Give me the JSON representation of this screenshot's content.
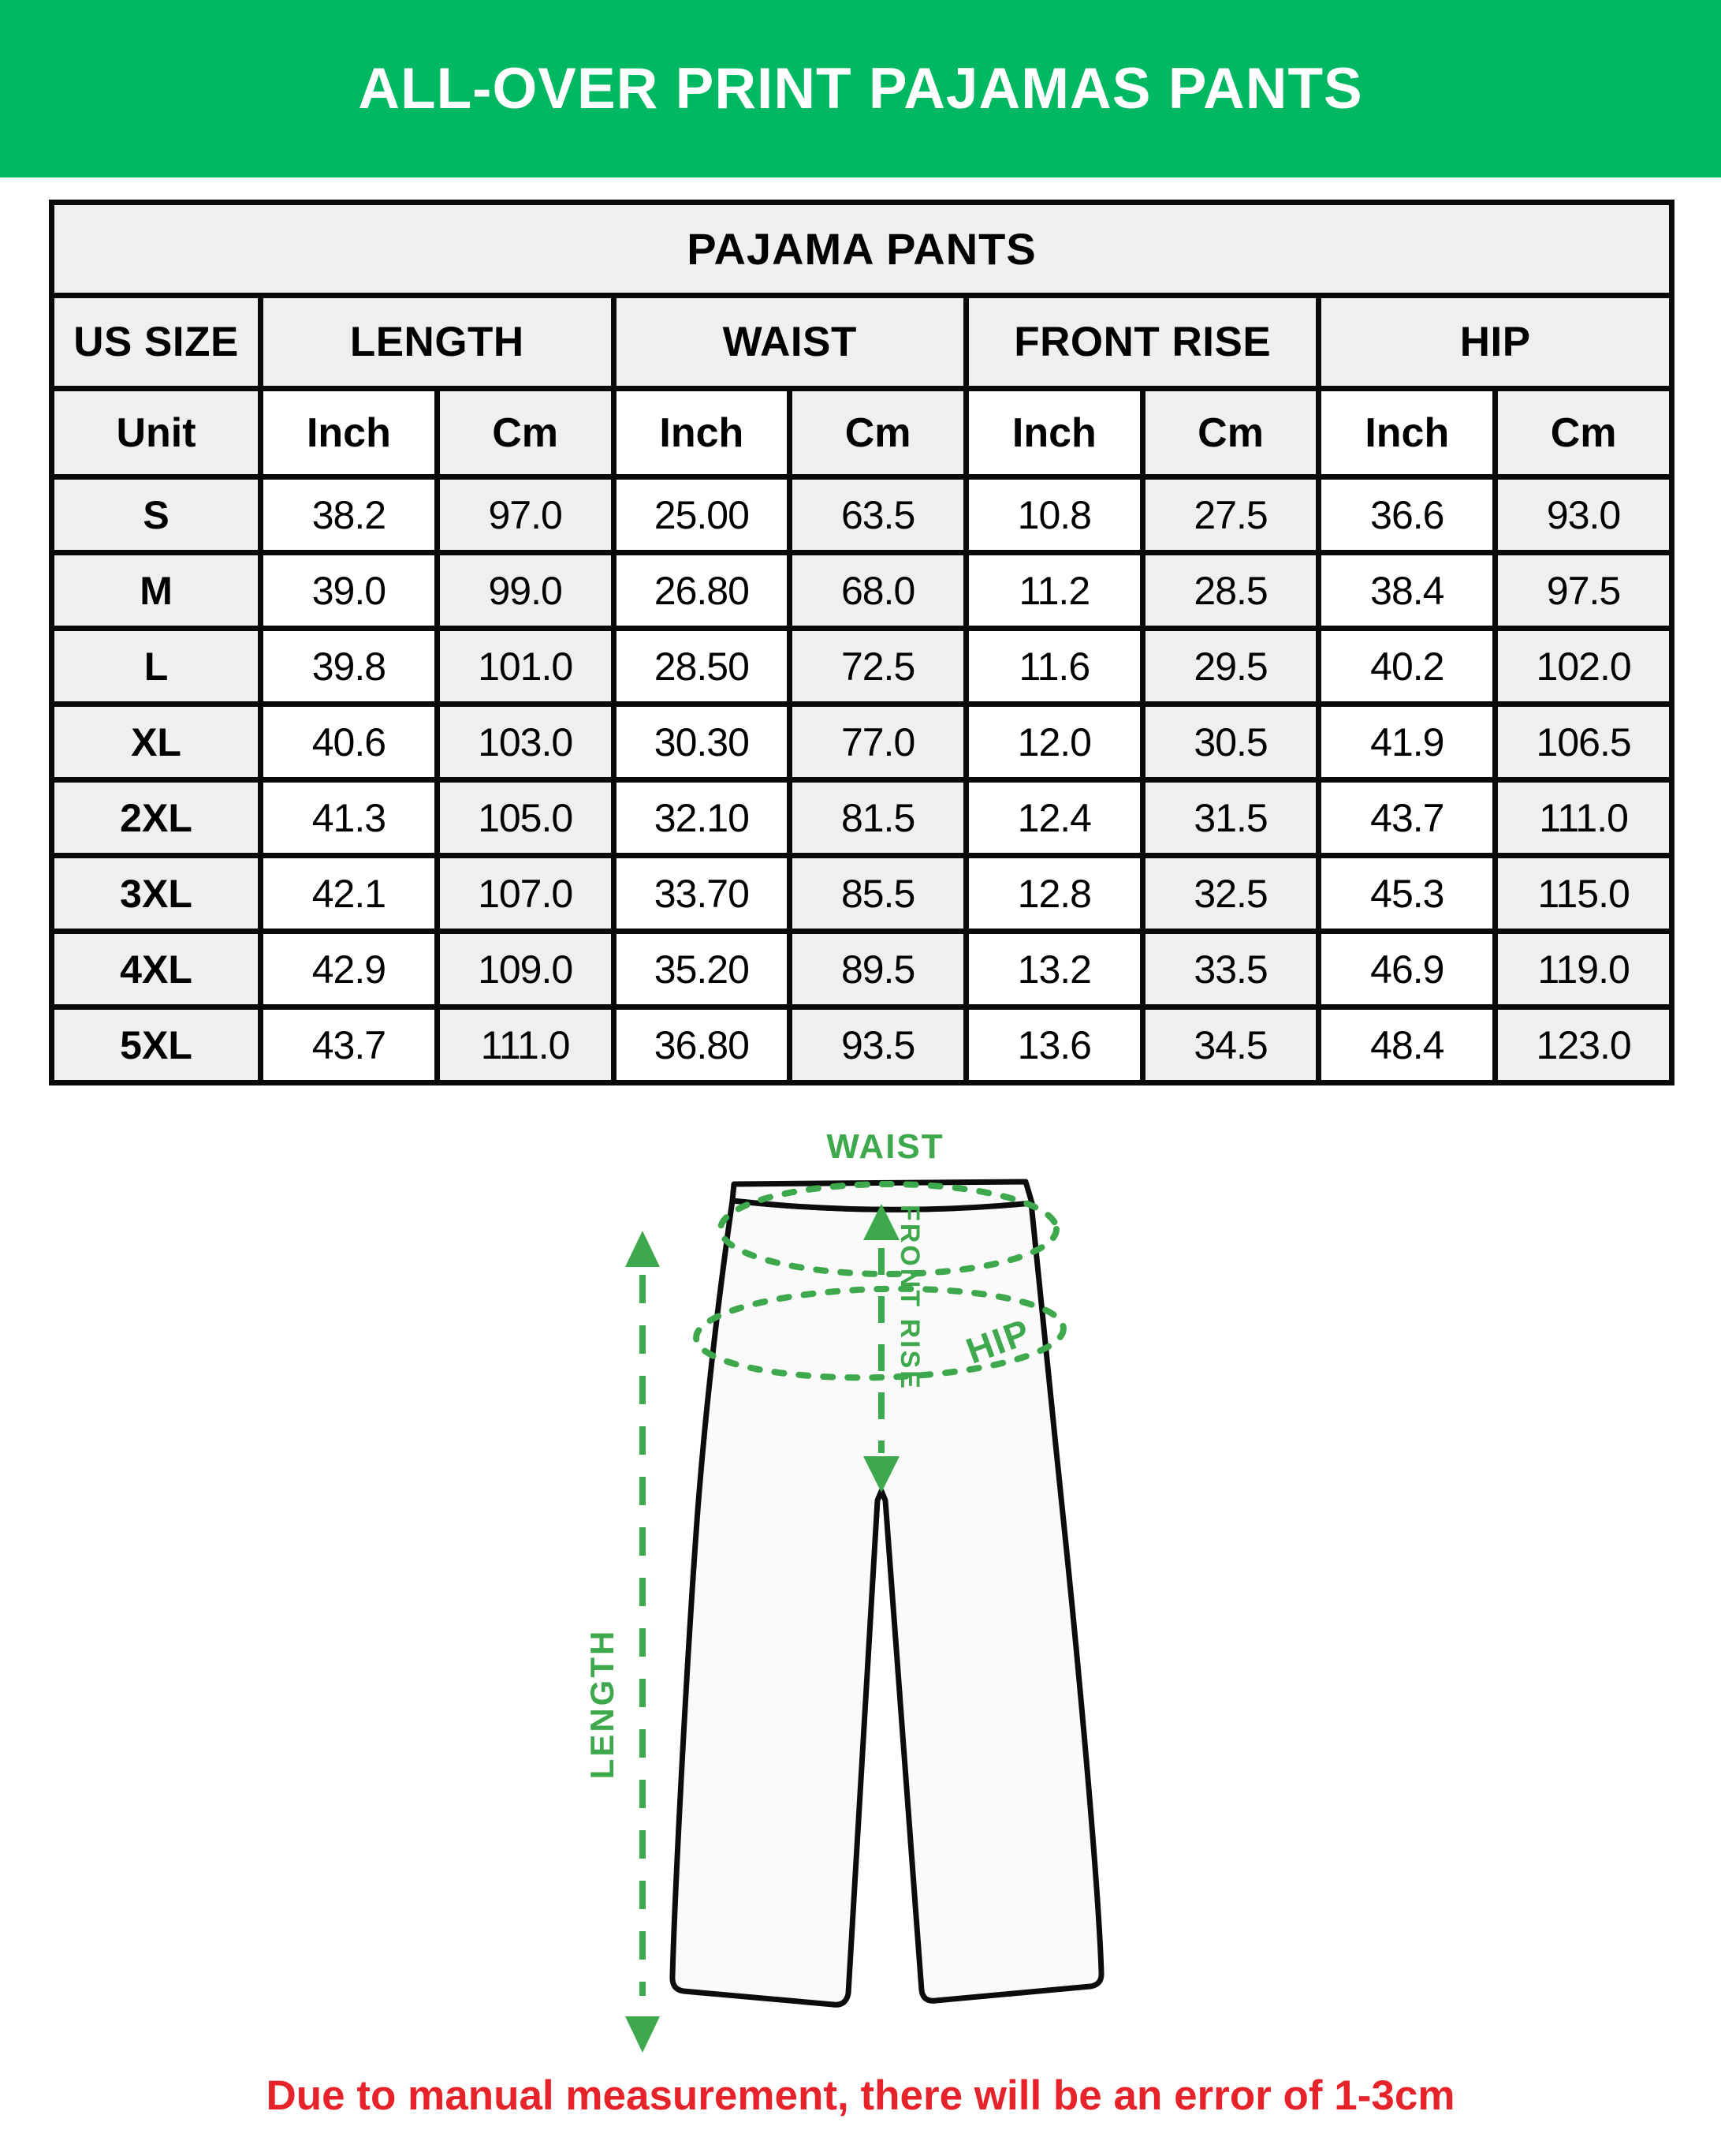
{
  "header": {
    "title": "ALL-OVER PRINT PAJAMAS PANTS"
  },
  "size_chart": {
    "title": "PAJAMA PANTS",
    "columns": [
      "US SIZE",
      "LENGTH",
      "WAIST",
      "FRONT RISE",
      "HIP"
    ],
    "unit_row": {
      "label": "Unit",
      "units": [
        "Inch",
        "Cm",
        "Inch",
        "Cm",
        "Inch",
        "Cm",
        "Inch",
        "Cm"
      ]
    },
    "rows": [
      {
        "size": "S",
        "values": [
          "38.2",
          "97.0",
          "25.00",
          "63.5",
          "10.8",
          "27.5",
          "36.6",
          "93.0"
        ]
      },
      {
        "size": "M",
        "values": [
          "39.0",
          "99.0",
          "26.80",
          "68.0",
          "11.2",
          "28.5",
          "38.4",
          "97.5"
        ]
      },
      {
        "size": "L",
        "values": [
          "39.8",
          "101.0",
          "28.50",
          "72.5",
          "11.6",
          "29.5",
          "40.2",
          "102.0"
        ]
      },
      {
        "size": "XL",
        "values": [
          "40.6",
          "103.0",
          "30.30",
          "77.0",
          "12.0",
          "30.5",
          "41.9",
          "106.5"
        ]
      },
      {
        "size": "2XL",
        "values": [
          "41.3",
          "105.0",
          "32.10",
          "81.5",
          "12.4",
          "31.5",
          "43.7",
          "111.0"
        ]
      },
      {
        "size": "3XL",
        "values": [
          "42.1",
          "107.0",
          "33.70",
          "85.5",
          "12.8",
          "32.5",
          "45.3",
          "115.0"
        ]
      },
      {
        "size": "4XL",
        "values": [
          "42.9",
          "109.0",
          "35.20",
          "89.5",
          "13.2",
          "33.5",
          "46.9",
          "119.0"
        ]
      },
      {
        "size": "5XL",
        "values": [
          "43.7",
          "111.0",
          "36.80",
          "93.5",
          "13.6",
          "34.5",
          "48.4",
          "123.0"
        ]
      }
    ]
  },
  "diagram": {
    "labels": {
      "waist": "WAIST",
      "front_rise": "FRONT RISE",
      "hip": "HIP",
      "length": "LENGTH"
    }
  },
  "footnote": {
    "text": "Due to manual measurement, there will be an error of 1-3cm"
  },
  "colors": {
    "banner_bg": "#00b862",
    "banner_text": "#ffffff",
    "diagram_green": "#3ea94c",
    "note_red": "#e6232a",
    "table_gray": "#efefef",
    "line_black": "#0a0a0a"
  }
}
